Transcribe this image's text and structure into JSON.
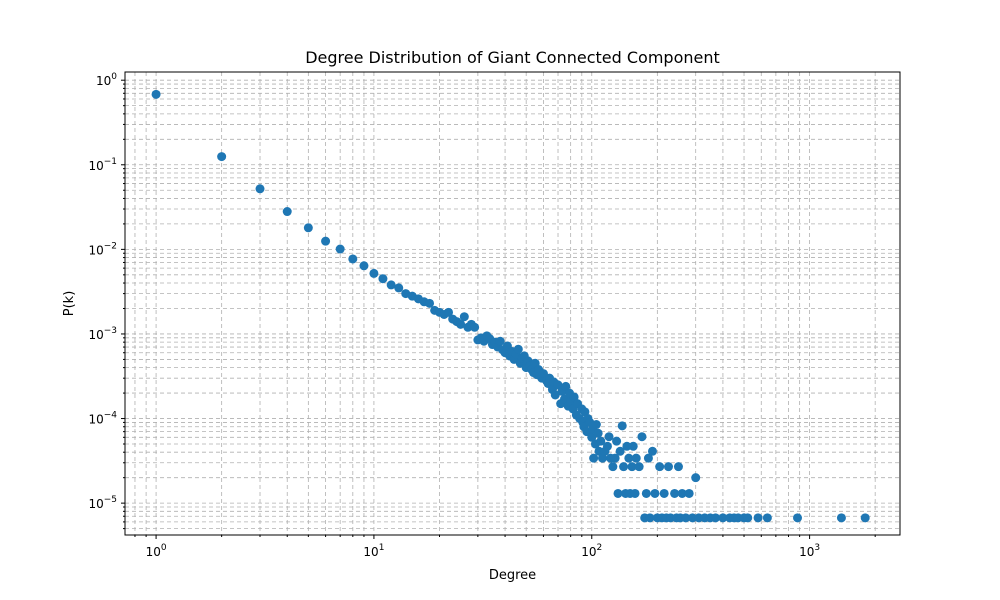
{
  "chart_data": {
    "type": "scatter",
    "title": "Degree Distribution of Giant Connected Component",
    "xlabel": "Degree",
    "ylabel": "P(k)",
    "xscale": "log",
    "yscale": "log",
    "xlim": [
      0.72,
      2600
    ],
    "ylim": [
      4.2e-06,
      1.25
    ],
    "x_ticks": [
      {
        "base": "10",
        "exp": "0",
        "value": 1
      },
      {
        "base": "10",
        "exp": "1",
        "value": 10
      },
      {
        "base": "10",
        "exp": "2",
        "value": 100
      },
      {
        "base": "10",
        "exp": "3",
        "value": 1000
      }
    ],
    "y_ticks": [
      {
        "base": "10",
        "exp": "0",
        "value": 1
      },
      {
        "base": "10",
        "exp": "−1",
        "value": 0.1
      },
      {
        "base": "10",
        "exp": "−2",
        "value": 0.01
      },
      {
        "base": "10",
        "exp": "−3",
        "value": 0.001
      },
      {
        "base": "10",
        "exp": "−4",
        "value": 0.0001
      },
      {
        "base": "10",
        "exp": "−5",
        "value": 1e-05
      }
    ],
    "grid": true,
    "marker_color": "#1f77b4",
    "points": [
      [
        1,
        0.68
      ],
      [
        2,
        0.125
      ],
      [
        3,
        0.052
      ],
      [
        4,
        0.028
      ],
      [
        5,
        0.018
      ],
      [
        6,
        0.0125
      ],
      [
        7,
        0.0101
      ],
      [
        8,
        0.0077
      ],
      [
        9,
        0.0064
      ],
      [
        10,
        0.0052
      ],
      [
        11,
        0.0045
      ],
      [
        12,
        0.0038
      ],
      [
        13,
        0.0035
      ],
      [
        14,
        0.003
      ],
      [
        15,
        0.0028
      ],
      [
        16,
        0.0026
      ],
      [
        17,
        0.0024
      ],
      [
        18,
        0.0023
      ],
      [
        19,
        0.0019
      ],
      [
        20,
        0.0018
      ],
      [
        21,
        0.0017
      ],
      [
        22,
        0.0018
      ],
      [
        23,
        0.0015
      ],
      [
        24,
        0.0014
      ],
      [
        25,
        0.0013
      ],
      [
        26,
        0.0016
      ],
      [
        27,
        0.0012
      ],
      [
        28,
        0.0013
      ],
      [
        29,
        0.0012
      ],
      [
        30,
        0.00085
      ],
      [
        31,
        0.0009
      ],
      [
        32,
        0.00082
      ],
      [
        33,
        0.00095
      ],
      [
        34,
        0.00088
      ],
      [
        35,
        0.00075
      ],
      [
        36,
        0.0008
      ],
      [
        37,
        0.0007
      ],
      [
        38,
        0.00082
      ],
      [
        39,
        0.00065
      ],
      [
        40,
        0.0006
      ],
      [
        41,
        0.00072
      ],
      [
        42,
        0.00055
      ],
      [
        43,
        0.00062
      ],
      [
        44,
        0.0005
      ],
      [
        45,
        0.00058
      ],
      [
        46,
        0.00066
      ],
      [
        47,
        0.00045
      ],
      [
        48,
        0.00052
      ],
      [
        49,
        0.00055
      ],
      [
        50,
        0.0004
      ],
      [
        51,
        0.00048
      ],
      [
        52,
        0.00042
      ],
      [
        53,
        0.00038
      ],
      [
        54,
        0.00035
      ],
      [
        55,
        0.00045
      ],
      [
        56,
        0.00033
      ],
      [
        57,
        0.00038
      ],
      [
        58,
        0.00032
      ],
      [
        59,
        0.0003
      ],
      [
        60,
        0.00034
      ],
      [
        62,
        0.00028
      ],
      [
        63,
        0.00026
      ],
      [
        64,
        0.0003
      ],
      [
        66,
        0.00022
      ],
      [
        67,
        0.00027
      ],
      [
        68,
        0.00019
      ],
      [
        70,
        0.00025
      ],
      [
        72,
        0.00015
      ],
      [
        73,
        0.00021
      ],
      [
        75,
        0.00017
      ],
      [
        76,
        0.00024
      ],
      [
        78,
        0.00014
      ],
      [
        79,
        0.0002
      ],
      [
        80,
        0.00016
      ],
      [
        82,
        0.00013
      ],
      [
        83,
        0.00018
      ],
      [
        85,
        0.00011
      ],
      [
        86,
        0.00015
      ],
      [
        88,
        0.0001
      ],
      [
        90,
        0.00013
      ],
      [
        91,
        9e-05
      ],
      [
        92,
        8e-05
      ],
      [
        93,
        0.00012
      ],
      [
        95,
        7e-05
      ],
      [
        96,
        0.0001
      ],
      [
        98,
        9e-05
      ],
      [
        100,
        6e-05
      ],
      [
        101,
        7.5e-05
      ],
      [
        102,
        3.4e-05
      ],
      [
        104,
        5e-05
      ],
      [
        105,
        8.5e-05
      ],
      [
        107,
        6.7e-05
      ],
      [
        108,
        4.1e-05
      ],
      [
        110,
        5.4e-05
      ],
      [
        112,
        3.4e-05
      ],
      [
        115,
        4.1e-05
      ],
      [
        118,
        4.7e-05
      ],
      [
        120,
        6.1e-05
      ],
      [
        122,
        3.4e-05
      ],
      [
        125,
        2.7e-05
      ],
      [
        128,
        3.4e-05
      ],
      [
        130,
        5.4e-05
      ],
      [
        132,
        1.3e-05
      ],
      [
        135,
        4.1e-05
      ],
      [
        138,
        8.2e-05
      ],
      [
        140,
        2.7e-05
      ],
      [
        143,
        1.3e-05
      ],
      [
        145,
        4.7e-05
      ],
      [
        148,
        3.4e-05
      ],
      [
        150,
        1.3e-05
      ],
      [
        153,
        2.7e-05
      ],
      [
        155,
        4.7e-05
      ],
      [
        158,
        1.3e-05
      ],
      [
        160,
        3.4e-05
      ],
      [
        165,
        2.7e-05
      ],
      [
        170,
        6.1e-05
      ],
      [
        175,
        6.7e-06
      ],
      [
        178,
        1.3e-05
      ],
      [
        182,
        3.4e-05
      ],
      [
        185,
        6.7e-06
      ],
      [
        190,
        4.1e-05
      ],
      [
        195,
        1.3e-05
      ],
      [
        200,
        6.7e-06
      ],
      [
        205,
        2.7e-05
      ],
      [
        210,
        6.7e-06
      ],
      [
        215,
        1.3e-05
      ],
      [
        220,
        6.7e-06
      ],
      [
        225,
        2.7e-05
      ],
      [
        230,
        6.7e-06
      ],
      [
        240,
        1.3e-05
      ],
      [
        245,
        6.7e-06
      ],
      [
        250,
        2.7e-05
      ],
      [
        255,
        6.7e-06
      ],
      [
        260,
        1.3e-05
      ],
      [
        270,
        6.7e-06
      ],
      [
        280,
        1.3e-05
      ],
      [
        290,
        6.7e-06
      ],
      [
        300,
        2e-05
      ],
      [
        310,
        6.7e-06
      ],
      [
        330,
        6.7e-06
      ],
      [
        350,
        6.7e-06
      ],
      [
        370,
        6.7e-06
      ],
      [
        400,
        6.7e-06
      ],
      [
        430,
        6.7e-06
      ],
      [
        450,
        6.7e-06
      ],
      [
        470,
        6.7e-06
      ],
      [
        500,
        6.7e-06
      ],
      [
        520,
        6.7e-06
      ],
      [
        580,
        6.7e-06
      ],
      [
        640,
        6.7e-06
      ],
      [
        880,
        6.7e-06
      ],
      [
        1400,
        6.7e-06
      ],
      [
        1800,
        6.7e-06
      ]
    ]
  }
}
